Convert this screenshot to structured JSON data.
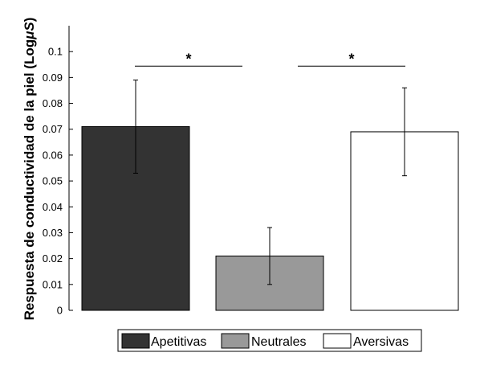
{
  "chart_data": {
    "type": "bar",
    "categories": [
      "Apetitivas",
      "Neutrales",
      "Aversivas"
    ],
    "values": [
      0.071,
      0.021,
      0.069
    ],
    "error_low": [
      0.053,
      0.01,
      0.052
    ],
    "error_high": [
      0.089,
      0.032,
      0.086
    ],
    "colors": [
      "#333333",
      "#999999",
      "#ffffff"
    ],
    "ylabel_prefix": "Respuesta de conductividad de la piel (Log",
    "ylabel_unit": "S",
    "ylabel_suffix": ")",
    "ylim": [
      0,
      0.11
    ],
    "yticks": [
      "0",
      "0.01",
      "0.02",
      "0.03",
      "0.04",
      "0.05",
      "0.06",
      "0.07",
      "0.08",
      "0.09",
      "0.1"
    ],
    "ytick_values": [
      0,
      0.01,
      0.02,
      0.03,
      0.04,
      0.05,
      0.06,
      0.07,
      0.08,
      0.09,
      0.1
    ],
    "significance": [
      {
        "from": 0,
        "to": 1,
        "y": 0.095,
        "label": "*"
      },
      {
        "from": 1,
        "to": 2,
        "y": 0.095,
        "label": "*"
      }
    ],
    "legend": {
      "placement": "bottom",
      "entries": [
        "Apetitivas",
        "Neutrales",
        "Aversivas"
      ]
    },
    "grid": false
  }
}
